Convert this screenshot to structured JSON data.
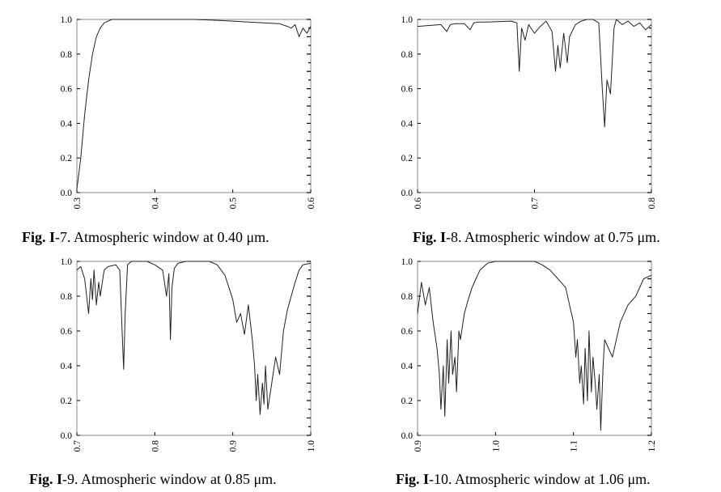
{
  "figures": [
    {
      "fig_label": "Fig. I",
      "fig_num": "-7.",
      "caption_text": "Atmospheric window at 0.40 μm."
    },
    {
      "fig_label": "Fig. I",
      "fig_num": "-8.",
      "caption_text": "Atmospheric window at 0.75 μm."
    },
    {
      "fig_label": "Fig. I",
      "fig_num": "-9.",
      "caption_text": "Atmospheric window at 0.85 μm."
    },
    {
      "fig_label": "Fig. I",
      "fig_num": "-10.",
      "caption_text": "Atmospheric window at 1.06 μm."
    }
  ],
  "chart_data": [
    {
      "type": "line",
      "xlim": [
        0.3,
        0.6
      ],
      "ylim": [
        0.0,
        1.0
      ],
      "xticks": [
        "0.3",
        "0.4",
        "0.5",
        "0.6"
      ],
      "yticks": [
        "0.0",
        "0.2",
        "0.4",
        "0.6",
        "0.8",
        "1.0"
      ],
      "grid": false,
      "series": [
        {
          "x": [
            0.3,
            0.305,
            0.31,
            0.315,
            0.32,
            0.325,
            0.33,
            0.335,
            0.34,
            0.345,
            0.35,
            0.36,
            0.38,
            0.4,
            0.42,
            0.45,
            0.48,
            0.5,
            0.52,
            0.54,
            0.56,
            0.57,
            0.575,
            0.58,
            0.585,
            0.59,
            0.595,
            0.6
          ],
          "y": [
            0.02,
            0.2,
            0.45,
            0.65,
            0.8,
            0.9,
            0.95,
            0.98,
            0.99,
            1.0,
            1.0,
            1.0,
            1.0,
            1.0,
            1.0,
            1.0,
            0.995,
            0.99,
            0.985,
            0.98,
            0.975,
            0.96,
            0.95,
            0.97,
            0.9,
            0.95,
            0.92,
            0.96
          ]
        }
      ]
    },
    {
      "type": "line",
      "xlim": [
        0.6,
        0.8
      ],
      "ylim": [
        0.0,
        1.0
      ],
      "xticks": [
        "0.6",
        "0.7",
        "0.8"
      ],
      "yticks": [
        "0.0",
        "0.2",
        "0.4",
        "0.6",
        "0.8",
        "1.0"
      ],
      "grid": false,
      "series": [
        {
          "x": [
            0.6,
            0.62,
            0.625,
            0.628,
            0.632,
            0.64,
            0.645,
            0.648,
            0.652,
            0.66,
            0.68,
            0.685,
            0.687,
            0.689,
            0.692,
            0.695,
            0.7,
            0.705,
            0.71,
            0.715,
            0.718,
            0.72,
            0.722,
            0.725,
            0.728,
            0.73,
            0.735,
            0.74,
            0.745,
            0.75,
            0.755,
            0.758,
            0.76,
            0.762,
            0.765,
            0.768,
            0.77,
            0.775,
            0.78,
            0.785,
            0.79,
            0.795,
            0.8
          ],
          "y": [
            0.96,
            0.97,
            0.93,
            0.97,
            0.975,
            0.975,
            0.94,
            0.98,
            0.985,
            0.985,
            0.99,
            0.98,
            0.7,
            0.95,
            0.88,
            0.97,
            0.92,
            0.96,
            0.99,
            0.93,
            0.7,
            0.85,
            0.72,
            0.92,
            0.75,
            0.9,
            0.97,
            0.99,
            1.0,
            1.0,
            0.98,
            0.6,
            0.38,
            0.65,
            0.57,
            0.95,
            1.0,
            0.97,
            0.99,
            0.96,
            0.98,
            0.94,
            0.97
          ]
        }
      ]
    },
    {
      "type": "line",
      "xlim": [
        0.7,
        1.0
      ],
      "ylim": [
        0.0,
        1.0
      ],
      "xticks": [
        "0.7",
        "0.8",
        "0.9",
        "1.0"
      ],
      "yticks": [
        "0.0",
        "0.2",
        "0.4",
        "0.6",
        "0.8",
        "1.0"
      ],
      "grid": false,
      "series": [
        {
          "x": [
            0.7,
            0.705,
            0.71,
            0.715,
            0.718,
            0.72,
            0.722,
            0.725,
            0.728,
            0.73,
            0.735,
            0.74,
            0.75,
            0.755,
            0.758,
            0.76,
            0.762,
            0.765,
            0.77,
            0.78,
            0.79,
            0.8,
            0.81,
            0.815,
            0.818,
            0.82,
            0.822,
            0.825,
            0.83,
            0.84,
            0.85,
            0.86,
            0.87,
            0.88,
            0.89,
            0.895,
            0.9,
            0.905,
            0.91,
            0.915,
            0.92,
            0.925,
            0.928,
            0.93,
            0.932,
            0.935,
            0.938,
            0.94,
            0.942,
            0.945,
            0.95,
            0.955,
            0.96,
            0.965,
            0.97,
            0.975,
            0.98,
            0.985,
            0.99,
            1.0
          ],
          "y": [
            0.95,
            0.97,
            0.9,
            0.7,
            0.9,
            0.78,
            0.95,
            0.75,
            0.88,
            0.8,
            0.95,
            0.97,
            0.98,
            0.95,
            0.6,
            0.38,
            0.7,
            0.98,
            1.0,
            1.0,
            1.0,
            0.98,
            0.95,
            0.8,
            0.93,
            0.55,
            0.85,
            0.96,
            0.99,
            1.0,
            1.0,
            1.0,
            1.0,
            0.98,
            0.92,
            0.85,
            0.78,
            0.65,
            0.7,
            0.58,
            0.75,
            0.55,
            0.4,
            0.2,
            0.35,
            0.12,
            0.3,
            0.18,
            0.4,
            0.15,
            0.3,
            0.45,
            0.35,
            0.6,
            0.72,
            0.8,
            0.88,
            0.95,
            0.98,
            0.99
          ]
        }
      ]
    },
    {
      "type": "line",
      "xlim": [
        0.9,
        1.2
      ],
      "ylim": [
        0.0,
        1.0
      ],
      "xticks": [
        "0.9",
        "1.0",
        "1.1",
        "1.2"
      ],
      "yticks": [
        "0.0",
        "0.2",
        "0.4",
        "0.6",
        "0.8",
        "1.0"
      ],
      "grid": false,
      "series": [
        {
          "x": [
            0.9,
            0.905,
            0.91,
            0.915,
            0.92,
            0.925,
            0.928,
            0.93,
            0.933,
            0.935,
            0.938,
            0.94,
            0.943,
            0.945,
            0.948,
            0.95,
            0.953,
            0.955,
            0.96,
            0.965,
            0.97,
            0.975,
            0.98,
            0.99,
            1.0,
            1.01,
            1.02,
            1.03,
            1.04,
            1.05,
            1.06,
            1.07,
            1.08,
            1.09,
            1.095,
            1.1,
            1.103,
            1.105,
            1.108,
            1.11,
            1.113,
            1.115,
            1.118,
            1.12,
            1.123,
            1.125,
            1.128,
            1.13,
            1.133,
            1.135,
            1.138,
            1.14,
            1.145,
            1.15,
            1.16,
            1.17,
            1.18,
            1.19,
            1.2
          ],
          "y": [
            0.7,
            0.88,
            0.75,
            0.85,
            0.65,
            0.5,
            0.35,
            0.15,
            0.4,
            0.11,
            0.55,
            0.3,
            0.6,
            0.35,
            0.45,
            0.25,
            0.6,
            0.55,
            0.7,
            0.78,
            0.85,
            0.9,
            0.95,
            0.99,
            1.0,
            1.0,
            1.0,
            1.0,
            1.0,
            1.0,
            0.98,
            0.95,
            0.9,
            0.85,
            0.75,
            0.65,
            0.45,
            0.55,
            0.3,
            0.4,
            0.18,
            0.5,
            0.2,
            0.6,
            0.25,
            0.45,
            0.3,
            0.15,
            0.35,
            0.03,
            0.4,
            0.55,
            0.5,
            0.45,
            0.65,
            0.75,
            0.8,
            0.9,
            0.92
          ]
        }
      ]
    }
  ]
}
